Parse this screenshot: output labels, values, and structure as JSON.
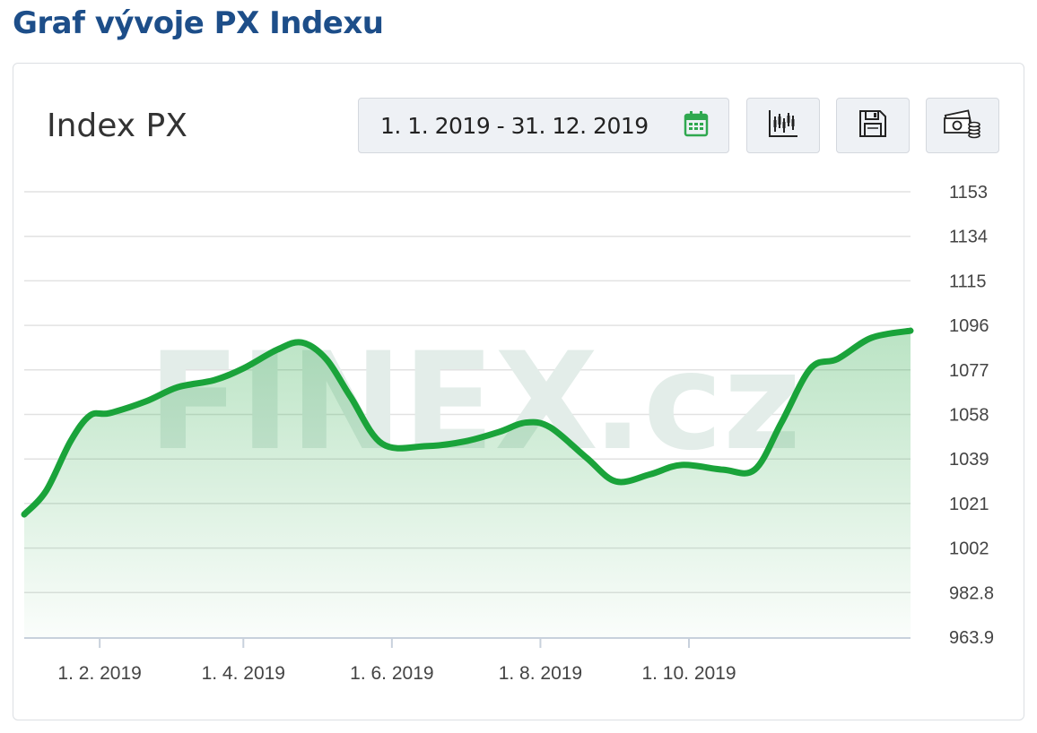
{
  "page": {
    "title": "Graf vývoje PX Indexu"
  },
  "toolbar": {
    "date_range": "1. 1. 2019 - 31. 12. 2019",
    "icons": [
      "calendar-icon",
      "candlestick-chart-icon",
      "save-icon",
      "money-icon"
    ]
  },
  "watermark": {
    "text_main": "FINEX",
    "text_suffix": ".cz"
  },
  "colors": {
    "title": "#1d4e89",
    "line": "#1aa33a",
    "calendar_icon": "#2fa84f",
    "grid": "#e2e2e2"
  },
  "chart_data": {
    "type": "area",
    "title": "Index PX",
    "xlabel": "",
    "ylabel": "",
    "x_tick_labels": [
      "1. 2. 2019",
      "1. 4. 2019",
      "1. 6. 2019",
      "1. 8. 2019",
      "1. 10. 2019"
    ],
    "x_ticks": [
      "2019-02-01",
      "2019-04-01",
      "2019-06-01",
      "2019-08-01",
      "2019-10-01"
    ],
    "y_tick_labels": [
      "963.9",
      "982.8",
      "1002",
      "1021",
      "1039",
      "1058",
      "1077",
      "1096",
      "1115",
      "1134",
      "1153"
    ],
    "ylim": [
      963.9,
      1153
    ],
    "xlim": [
      "2019-01-01",
      "2019-12-31"
    ],
    "grid": true,
    "y_axis_position": "right",
    "series": [
      {
        "values": [
          {
            "x": "2019-01-01",
            "y": 1016
          },
          {
            "x": "2019-01-10",
            "y": 1026
          },
          {
            "x": "2019-01-20",
            "y": 1047
          },
          {
            "x": "2019-01-28",
            "y": 1058
          },
          {
            "x": "2019-02-05",
            "y": 1059
          },
          {
            "x": "2019-02-20",
            "y": 1064
          },
          {
            "x": "2019-03-05",
            "y": 1070
          },
          {
            "x": "2019-03-20",
            "y": 1073
          },
          {
            "x": "2019-04-01",
            "y": 1078
          },
          {
            "x": "2019-04-15",
            "y": 1086
          },
          {
            "x": "2019-04-25",
            "y": 1089
          },
          {
            "x": "2019-05-05",
            "y": 1082
          },
          {
            "x": "2019-05-15",
            "y": 1066
          },
          {
            "x": "2019-05-28",
            "y": 1046
          },
          {
            "x": "2019-06-15",
            "y": 1045
          },
          {
            "x": "2019-07-01",
            "y": 1047
          },
          {
            "x": "2019-07-15",
            "y": 1051
          },
          {
            "x": "2019-07-26",
            "y": 1055
          },
          {
            "x": "2019-08-05",
            "y": 1053
          },
          {
            "x": "2019-08-20",
            "y": 1040
          },
          {
            "x": "2019-09-01",
            "y": 1030
          },
          {
            "x": "2019-09-15",
            "y": 1033
          },
          {
            "x": "2019-09-28",
            "y": 1037
          },
          {
            "x": "2019-10-15",
            "y": 1035
          },
          {
            "x": "2019-10-28",
            "y": 1035
          },
          {
            "x": "2019-11-08",
            "y": 1055
          },
          {
            "x": "2019-11-20",
            "y": 1078
          },
          {
            "x": "2019-12-01",
            "y": 1082
          },
          {
            "x": "2019-12-15",
            "y": 1091
          },
          {
            "x": "2019-12-31",
            "y": 1094
          }
        ]
      }
    ]
  }
}
